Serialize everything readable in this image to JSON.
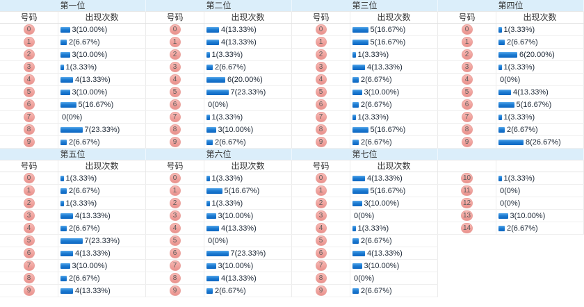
{
  "page": {
    "col_number": "号码",
    "col_count": "出现次数"
  },
  "colors": {
    "header_band_bg": "#dbeefa",
    "bar_blue": "#1373cc",
    "badge_pink": "#f2a6a2",
    "value_text": "#212c3a"
  },
  "chart_data": [
    {
      "type": "bar",
      "title": "第一位",
      "xlabel": "号码",
      "ylabel": "出现次数",
      "show_headers": true,
      "categories": [
        "0",
        "1",
        "2",
        "3",
        "4",
        "5",
        "6",
        "7",
        "8",
        "9"
      ],
      "values": [
        3,
        2,
        3,
        1,
        4,
        3,
        5,
        0,
        7,
        2
      ],
      "labels": [
        "3(10.00%)",
        "2(6.67%)",
        "3(10.00%)",
        "1(3.33%)",
        "4(13.33%)",
        "3(10.00%)",
        "5(16.67%)",
        "0(0%)",
        "7(23.33%)",
        "2(6.67%)"
      ]
    },
    {
      "type": "bar",
      "title": "第二位",
      "xlabel": "号码",
      "ylabel": "出现次数",
      "show_headers": true,
      "categories": [
        "0",
        "1",
        "2",
        "3",
        "4",
        "5",
        "6",
        "7",
        "8",
        "9"
      ],
      "values": [
        4,
        4,
        1,
        2,
        6,
        7,
        0,
        1,
        3,
        2
      ],
      "labels": [
        "4(13.33%)",
        "4(13.33%)",
        "1(3.33%)",
        "2(6.67%)",
        "6(20.00%)",
        "7(23.33%)",
        "0(0%)",
        "1(3.33%)",
        "3(10.00%)",
        "2(6.67%)"
      ]
    },
    {
      "type": "bar",
      "title": "第三位",
      "xlabel": "号码",
      "ylabel": "出现次数",
      "show_headers": true,
      "categories": [
        "0",
        "1",
        "2",
        "3",
        "4",
        "5",
        "6",
        "7",
        "8",
        "9"
      ],
      "values": [
        5,
        5,
        1,
        4,
        2,
        3,
        2,
        1,
        5,
        2
      ],
      "labels": [
        "5(16.67%)",
        "5(16.67%)",
        "1(3.33%)",
        "4(13.33%)",
        "2(6.67%)",
        "3(10.00%)",
        "2(6.67%)",
        "1(3.33%)",
        "5(16.67%)",
        "2(6.67%)"
      ]
    },
    {
      "type": "bar",
      "title": "第四位",
      "xlabel": "号码",
      "ylabel": "出现次数",
      "show_headers": true,
      "categories": [
        "0",
        "1",
        "2",
        "3",
        "4",
        "5",
        "6",
        "7",
        "8",
        "9"
      ],
      "values": [
        1,
        2,
        6,
        1,
        0,
        4,
        5,
        1,
        2,
        8
      ],
      "labels": [
        "1(3.33%)",
        "2(6.67%)",
        "6(20.00%)",
        "1(3.33%)",
        "0(0%)",
        "4(13.33%)",
        "5(16.67%)",
        "1(3.33%)",
        "2(6.67%)",
        "8(26.67%)"
      ]
    },
    {
      "type": "bar",
      "title": "第五位",
      "xlabel": "号码",
      "ylabel": "出现次数",
      "show_headers": true,
      "categories": [
        "0",
        "1",
        "2",
        "3",
        "4",
        "5",
        "6",
        "7",
        "8",
        "9"
      ],
      "values": [
        1,
        2,
        1,
        4,
        2,
        7,
        4,
        3,
        2,
        4
      ],
      "labels": [
        "1(3.33%)",
        "2(6.67%)",
        "1(3.33%)",
        "4(13.33%)",
        "2(6.67%)",
        "7(23.33%)",
        "4(13.33%)",
        "3(10.00%)",
        "2(6.67%)",
        "4(13.33%)"
      ]
    },
    {
      "type": "bar",
      "title": "第六位",
      "xlabel": "号码",
      "ylabel": "出现次数",
      "show_headers": true,
      "categories": [
        "0",
        "1",
        "2",
        "3",
        "4",
        "5",
        "6",
        "7",
        "8",
        "9"
      ],
      "values": [
        1,
        5,
        1,
        3,
        4,
        0,
        7,
        3,
        4,
        2
      ],
      "labels": [
        "1(3.33%)",
        "5(16.67%)",
        "1(3.33%)",
        "3(10.00%)",
        "4(13.33%)",
        "0(0%)",
        "7(23.33%)",
        "3(10.00%)",
        "4(13.33%)",
        "2(6.67%)"
      ]
    },
    {
      "type": "bar",
      "title": "第七位",
      "xlabel": "号码",
      "ylabel": "出现次数",
      "show_headers": true,
      "categories": [
        "0",
        "1",
        "2",
        "3",
        "4",
        "5",
        "6",
        "7",
        "8",
        "9"
      ],
      "values": [
        4,
        5,
        3,
        0,
        1,
        2,
        4,
        3,
        0,
        2
      ],
      "labels": [
        "4(13.33%)",
        "5(16.67%)",
        "3(10.00%)",
        "0(0%)",
        "1(3.33%)",
        "2(6.67%)",
        "4(13.33%)",
        "3(10.00%)",
        "0(0%)",
        "2(6.67%)"
      ]
    },
    {
      "type": "bar",
      "title": "",
      "xlabel": "号码",
      "ylabel": "出现次数",
      "show_headers": false,
      "categories": [
        "10",
        "11",
        "12",
        "13",
        "14"
      ],
      "values": [
        1,
        0,
        0,
        3,
        2
      ],
      "labels": [
        "1(3.33%)",
        "0(0%)",
        "0(0%)",
        "3(10.00%)",
        "2(6.67%)"
      ]
    }
  ]
}
